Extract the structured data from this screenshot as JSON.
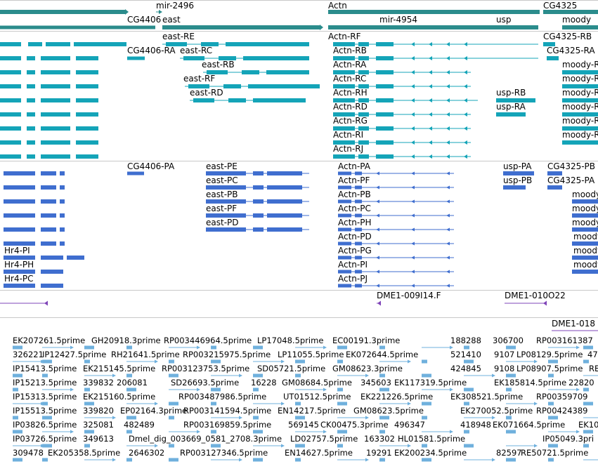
{
  "colors": {
    "gene": "#2b8c8c",
    "mrna": "#14a4b8",
    "protein": "#3f6ecf",
    "probe": "#7f44b8",
    "est": "#6fb0dd",
    "separator": "#c8c8c8"
  },
  "tracks": {
    "genes": [
      "mir-2496",
      "east",
      "Actn",
      "CG4325",
      "CG4406",
      "mir-4954",
      "usp",
      "moody"
    ],
    "transcripts": [
      "east-RE",
      "Actn-RF",
      "CG4325-RB",
      "CG4406-RA",
      "east-RC",
      "Actn-RB",
      "CG4325-RA",
      "east-RB",
      "Actn-RA",
      "moody-R",
      "east-RF",
      "Actn-RC",
      "moody-R",
      "east-RD",
      "Actn-RH",
      "usp-RB",
      "moody-R",
      "Actn-RD",
      "usp-RA",
      "moody-R",
      "Actn-RG",
      "moody-R",
      "Actn-RI",
      "moody-R",
      "Actn-RJ"
    ],
    "proteins": [
      "CG4406-PA",
      "east-PE",
      "Actn-PA",
      "usp-PA",
      "CG4325-PB",
      "east-PC",
      "Actn-PF",
      "usp-PB",
      "CG4325-PA",
      "east-PB",
      "Actn-PB",
      "moody",
      "east-PF",
      "Actn-PC",
      "moody",
      "east-PD",
      "Actn-PH",
      "moody",
      "Actn-PD",
      "moody",
      "Hr4-PI",
      "Actn-PG",
      "moody",
      "Hr4-PH",
      "Actn-PI",
      "moody",
      "Hr4-PC",
      "Actn-PJ"
    ],
    "probes": [
      "DME1-009I14.F",
      "DME1-010O22",
      "DME1-018"
    ],
    "ests": [
      "EK207261.5prime",
      "GH20918.3prime",
      "RP003446964.5prime",
      "LP17048.5prime",
      "EC00191.3prime",
      "188288",
      "306700",
      "RP003161387",
      "326221",
      "IP12427.5prime",
      "RH21641.5prime",
      "RP003215975.5prime",
      "LP11055.5prime",
      "EK072644.5prime",
      "521410",
      "9107",
      "LP08129.5prime",
      "47",
      "IP15413.5prime",
      "EK215145.5prime",
      "RP003123753.5prime",
      "SD05721.5prime",
      "GM08623.3prime",
      "424845",
      "9108",
      "LP08907.5prime",
      "RE",
      "IP15213.5prime",
      "339832",
      "206081",
      "SD26693.5prime",
      "16228",
      "GM08684.5prime",
      "345603",
      "EK117319.5prime",
      "EK185814.5prime",
      "22820",
      "IP15313.5prime",
      "EK215160.5prime",
      "RP003487986.5prime",
      "UT01512.5prime",
      "EK221226.5prime",
      "EK308521.5prime",
      "RP00359709",
      "IP15513.5prime",
      "339820",
      "EP02164.3prime",
      "RP003141594.5prime",
      "EN14217.5prime",
      "GM08623.5prime",
      "EK270052.5prime",
      "RP00424389",
      "IP03826.5prime",
      "325081",
      "482489",
      "RP003169859.5prime",
      "569145",
      "CK00475.3prime",
      "496347",
      "418948",
      "EK071664.5prime",
      "EK10",
      "IP03726.5prime",
      "349613",
      "Dmel_dig_003669_0581_2708.3prime",
      "LD02757.5prime",
      "163302",
      "HL01581.5prime",
      "IP05049.3pri",
      "309478",
      "EK205358.5prime",
      "2646302",
      "RP003127346.5prime",
      "EN14627.5prime",
      "19291",
      "EK200234.5prime",
      "82597",
      "RE50721.5prime"
    ]
  }
}
